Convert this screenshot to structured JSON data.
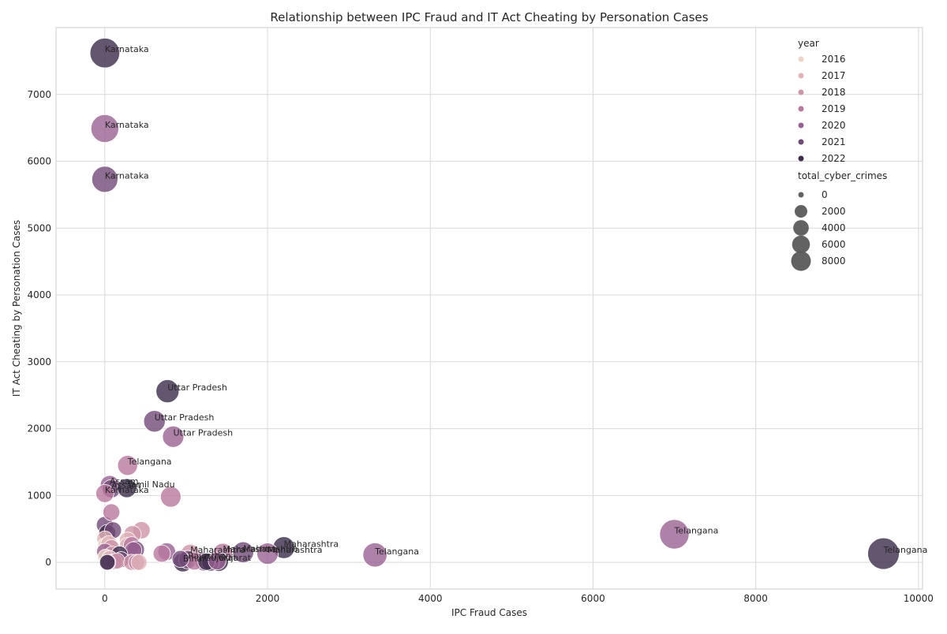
{
  "chart_data": {
    "type": "scatter",
    "title": "Relationship between IPC Fraud and IT Act Cheating by Personation Cases",
    "xlabel": "IPC Fraud Cases",
    "ylabel": "IT Act Cheating by Personation Cases",
    "xlim": [
      -600,
      10050
    ],
    "ylim": [
      -400,
      8000
    ],
    "xticks": [
      0,
      2000,
      4000,
      6000,
      8000,
      10000
    ],
    "yticks": [
      0,
      1000,
      2000,
      3000,
      4000,
      5000,
      6000,
      7000
    ],
    "grid": true,
    "legend_placement": "top-right",
    "hue_legend": {
      "title": "year",
      "entries": [
        {
          "label": "2016",
          "color": "#ecd4c6"
        },
        {
          "label": "2017",
          "color": "#e0b3b8"
        },
        {
          "label": "2018",
          "color": "#cd94a8"
        },
        {
          "label": "2019",
          "color": "#b8789e"
        },
        {
          "label": "2020",
          "color": "#9a6292"
        },
        {
          "label": "2021",
          "color": "#734a78"
        },
        {
          "label": "2022",
          "color": "#3c2d4c"
        }
      ]
    },
    "size_legend": {
      "title": "total_cyber_crimes",
      "entries": [
        {
          "label": "0",
          "value": 0
        },
        {
          "label": "2000",
          "value": 2000
        },
        {
          "label": "4000",
          "value": 4000
        },
        {
          "label": "6000",
          "value": 6000
        },
        {
          "label": "8000",
          "value": 8000
        }
      ]
    },
    "points": [
      {
        "x": 0,
        "y": 7620,
        "year": "2022",
        "size": 6700,
        "label": "Karnataka"
      },
      {
        "x": 0,
        "y": 6490,
        "year": "2020",
        "size": 5500,
        "label": "Karnataka"
      },
      {
        "x": 0,
        "y": 5730,
        "year": "2021",
        "size": 4500,
        "label": "Karnataka"
      },
      {
        "x": 770,
        "y": 2560,
        "year": "2022",
        "size": 3000,
        "label": "Uttar Pradesh"
      },
      {
        "x": 610,
        "y": 2110,
        "year": "2021",
        "size": 2400,
        "label": "Uttar Pradesh"
      },
      {
        "x": 840,
        "y": 1880,
        "year": "2020",
        "size": 2300,
        "label": "Uttar Pradesh"
      },
      {
        "x": 280,
        "y": 1450,
        "year": "2019",
        "size": 1800,
        "label": "Telangana"
      },
      {
        "x": 60,
        "y": 1160,
        "year": "2020",
        "size": 1400,
        "label": "Assam"
      },
      {
        "x": 80,
        "y": 1100,
        "year": "2021",
        "size": 1300,
        "label": "Assam"
      },
      {
        "x": 270,
        "y": 1110,
        "year": "2022",
        "size": 1500,
        "label": "Tamil Nadu"
      },
      {
        "x": 0,
        "y": 1030,
        "year": "2019",
        "size": 1200,
        "label": "Karnataka"
      },
      {
        "x": 810,
        "y": 980,
        "year": "2019",
        "size": 2000,
        "label": ""
      },
      {
        "x": 7000,
        "y": 420,
        "year": "2020",
        "size": 6500,
        "label": "Telangana"
      },
      {
        "x": 9570,
        "y": 130,
        "year": "2022",
        "size": 8000,
        "label": "Telangana"
      },
      {
        "x": 3320,
        "y": 110,
        "year": "2020",
        "size": 3500,
        "label": "Telangana"
      },
      {
        "x": 2200,
        "y": 220,
        "year": "2022",
        "size": 2500,
        "label": "Maharashtra"
      },
      {
        "x": 2000,
        "y": 130,
        "year": "2020",
        "size": 2300,
        "label": "Maharashtra"
      },
      {
        "x": 1700,
        "y": 150,
        "year": "2021",
        "size": 2200,
        "label": "Maharashtra"
      },
      {
        "x": 1450,
        "y": 140,
        "year": "2019",
        "size": 1600,
        "label": "Maharashtra"
      },
      {
        "x": 1050,
        "y": 130,
        "year": "2018",
        "size": 1400,
        "label": "Maharashtra"
      },
      {
        "x": 960,
        "y": 0,
        "year": "2022",
        "size": 1500,
        "label": "Bihar"
      },
      {
        "x": 1020,
        "y": 40,
        "year": "2021",
        "size": 1300,
        "label": "Rajasthan"
      },
      {
        "x": 1220,
        "y": 10,
        "year": "2020",
        "size": 1400,
        "label": "Gujarat"
      },
      {
        "x": 1400,
        "y": 10,
        "year": "2022",
        "size": 1600,
        "label": "Gujarat"
      },
      {
        "x": 1100,
        "y": 20,
        "year": "2019",
        "size": 1200,
        "label": ""
      },
      {
        "x": 0,
        "y": 560,
        "year": "2021",
        "size": 900,
        "label": ""
      },
      {
        "x": 80,
        "y": 750,
        "year": "2019",
        "size": 900,
        "label": ""
      },
      {
        "x": 30,
        "y": 440,
        "year": "2022",
        "size": 900,
        "label": ""
      },
      {
        "x": 100,
        "y": 480,
        "year": "2021",
        "size": 900,
        "label": ""
      },
      {
        "x": 450,
        "y": 480,
        "year": "2018",
        "size": 1000,
        "label": ""
      },
      {
        "x": 340,
        "y": 420,
        "year": "2018",
        "size": 1000,
        "label": ""
      },
      {
        "x": 280,
        "y": 330,
        "year": "2017",
        "size": 800,
        "label": ""
      },
      {
        "x": 0,
        "y": 350,
        "year": "2017",
        "size": 700,
        "label": ""
      },
      {
        "x": 10,
        "y": 250,
        "year": "2016",
        "size": 700,
        "label": ""
      },
      {
        "x": 50,
        "y": 280,
        "year": "2017",
        "size": 700,
        "label": ""
      },
      {
        "x": 80,
        "y": 220,
        "year": "2018",
        "size": 700,
        "label": ""
      },
      {
        "x": 280,
        "y": 250,
        "year": "2017",
        "size": 800,
        "label": ""
      },
      {
        "x": 330,
        "y": 260,
        "year": "2019",
        "size": 800,
        "label": ""
      },
      {
        "x": 380,
        "y": 190,
        "year": "2021",
        "size": 1000,
        "label": ""
      },
      {
        "x": 350,
        "y": 180,
        "year": "2020",
        "size": 900,
        "label": ""
      },
      {
        "x": 760,
        "y": 160,
        "year": "2020",
        "size": 1100,
        "label": ""
      },
      {
        "x": 700,
        "y": 130,
        "year": "2019",
        "size": 1000,
        "label": ""
      },
      {
        "x": 0,
        "y": 160,
        "year": "2020",
        "size": 800,
        "label": ""
      },
      {
        "x": 90,
        "y": 120,
        "year": "2018",
        "size": 700,
        "label": ""
      },
      {
        "x": 180,
        "y": 120,
        "year": "2022",
        "size": 800,
        "label": ""
      },
      {
        "x": 10,
        "y": 80,
        "year": "2016",
        "size": 600,
        "label": ""
      },
      {
        "x": 60,
        "y": 60,
        "year": "2017",
        "size": 600,
        "label": ""
      },
      {
        "x": 200,
        "y": 40,
        "year": "2021",
        "size": 700,
        "label": ""
      },
      {
        "x": 120,
        "y": 10,
        "year": "2019",
        "size": 700,
        "label": ""
      },
      {
        "x": 150,
        "y": 20,
        "year": "2018",
        "size": 700,
        "label": ""
      },
      {
        "x": 40,
        "y": 0,
        "year": "2020",
        "size": 600,
        "label": ""
      },
      {
        "x": 30,
        "y": 0,
        "year": "2022",
        "size": 600,
        "label": ""
      },
      {
        "x": 330,
        "y": 0,
        "year": "2018",
        "size": 700,
        "label": ""
      },
      {
        "x": 390,
        "y": 0,
        "year": "2019",
        "size": 700,
        "label": ""
      },
      {
        "x": 420,
        "y": 0,
        "year": "2017",
        "size": 700,
        "label": ""
      },
      {
        "x": 930,
        "y": 50,
        "year": "2021",
        "size": 900,
        "label": ""
      },
      {
        "x": 1300,
        "y": 0,
        "year": "2021",
        "size": 1100,
        "label": ""
      },
      {
        "x": 1250,
        "y": 10,
        "year": "2022",
        "size": 1000,
        "label": ""
      },
      {
        "x": 1380,
        "y": 20,
        "year": "2020",
        "size": 1100,
        "label": ""
      }
    ]
  }
}
